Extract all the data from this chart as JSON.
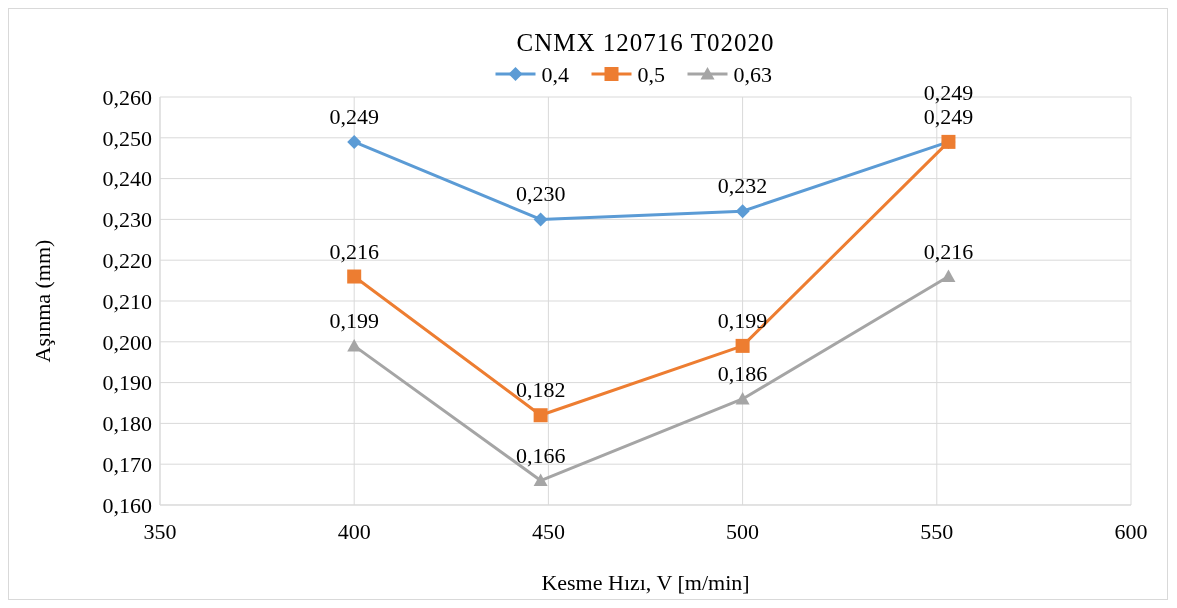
{
  "chart_data": {
    "type": "line",
    "title": "CNMX  120716  T02020",
    "xlabel": "Kesme Hızı, V [m/min]",
    "ylabel": "Aşınma (mm)",
    "x": [
      400,
      448,
      500,
      553
    ],
    "series": [
      {
        "name": "0,4",
        "color": "#5b9bd5",
        "marker": "diamond",
        "values": [
          0.249,
          0.23,
          0.232,
          0.249
        ],
        "value_labels": [
          "0,249",
          "0,230",
          "0,232",
          "0,249"
        ]
      },
      {
        "name": "0,5",
        "color": "#ed7d31",
        "marker": "square",
        "values": [
          0.216,
          0.182,
          0.199,
          0.249
        ],
        "value_labels": [
          "0,216",
          "0,182",
          "0,199",
          "0,249"
        ]
      },
      {
        "name": "0,63",
        "color": "#a5a5a5",
        "marker": "triangle",
        "values": [
          0.199,
          0.166,
          0.186,
          0.216
        ],
        "value_labels": [
          "0,199",
          "0,166",
          "0,186",
          "0,216"
        ]
      }
    ],
    "xlim": [
      350,
      600
    ],
    "xticks": [
      350,
      400,
      450,
      500,
      550,
      600
    ],
    "ylim": [
      0.16,
      0.26
    ],
    "yticks": [
      {
        "value": 0.16,
        "label": "0,160"
      },
      {
        "value": 0.17,
        "label": "0,170"
      },
      {
        "value": 0.18,
        "label": "0,180"
      },
      {
        "value": 0.19,
        "label": "0,190"
      },
      {
        "value": 0.2,
        "label": "0,200"
      },
      {
        "value": 0.21,
        "label": "0,210"
      },
      {
        "value": 0.22,
        "label": "0,220"
      },
      {
        "value": 0.23,
        "label": "0,230"
      },
      {
        "value": 0.24,
        "label": "0,240"
      },
      {
        "value": 0.25,
        "label": "0,250"
      },
      {
        "value": 0.26,
        "label": "0,260"
      }
    ],
    "grid": true,
    "legend": "top",
    "line_style": "solid"
  }
}
